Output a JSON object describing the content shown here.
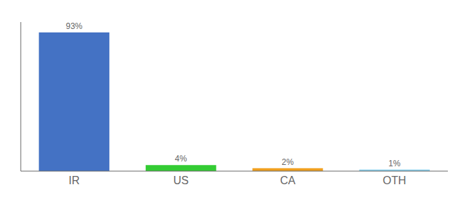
{
  "chart_data": {
    "type": "bar",
    "categories": [
      "IR",
      "US",
      "CA",
      "OTH"
    ],
    "values": [
      93,
      4,
      2,
      1
    ],
    "value_labels": [
      "93%",
      "4%",
      "2%",
      "1%"
    ],
    "data_labels": true,
    "colors": [
      "#4472c4",
      "#33cc33",
      "#f0a020",
      "#87ceeb"
    ],
    "ylim": [
      0,
      100
    ],
    "grid": false,
    "tick_labels": "x"
  }
}
